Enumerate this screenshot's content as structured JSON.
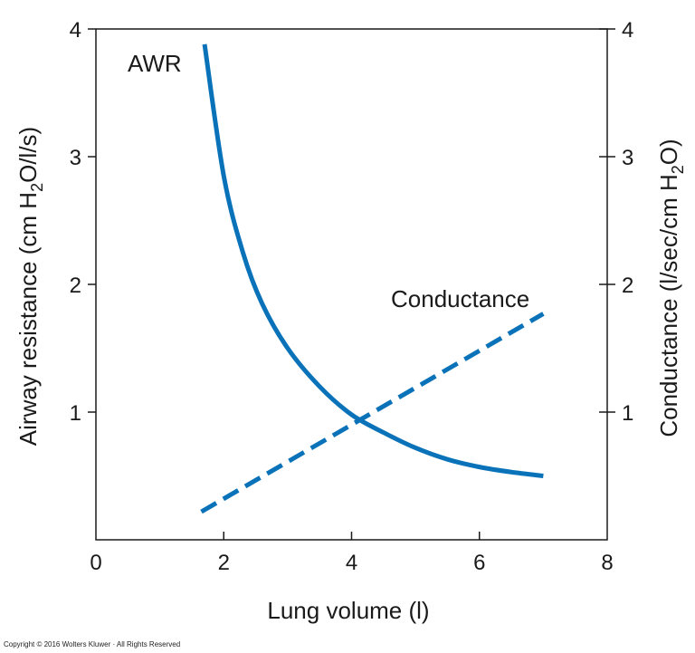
{
  "chart_data": {
    "type": "line",
    "xlabel": "Lung volume (l)",
    "ylabel_left": {
      "pre": "Airway resistance (cm H",
      "sub": "2",
      "post": "O/l/s)"
    },
    "ylabel_right": {
      "pre": "Conductance (l/sec/cm H",
      "sub": "2",
      "post": "O)"
    },
    "xlim": [
      0,
      8
    ],
    "ylim": [
      0,
      4
    ],
    "x_ticks": [
      "0",
      "2",
      "4",
      "6",
      "8"
    ],
    "y_left_ticks": [
      "1",
      "2",
      "3",
      "4"
    ],
    "y_right_ticks": [
      "1",
      "2",
      "3",
      "4"
    ],
    "grid": false,
    "series": [
      {
        "name": "AWR",
        "style": "solid",
        "color": "#0a72b8",
        "x": [
          1.7,
          2.0,
          2.3,
          2.6,
          3.0,
          3.5,
          4.0,
          4.5,
          5.0,
          5.5,
          6.0,
          6.5,
          7.0
        ],
        "y": [
          3.88,
          2.85,
          2.25,
          1.85,
          1.5,
          1.2,
          0.98,
          0.84,
          0.72,
          0.63,
          0.57,
          0.53,
          0.5
        ]
      },
      {
        "name": "Conductance",
        "style": "dashed",
        "color": "#0a72b8",
        "x": [
          1.65,
          7.0
        ],
        "y": [
          0.22,
          1.77
        ]
      }
    ]
  },
  "copyright": "Copyright © 2016 Wolters Kluwer · All Rights Reserved"
}
